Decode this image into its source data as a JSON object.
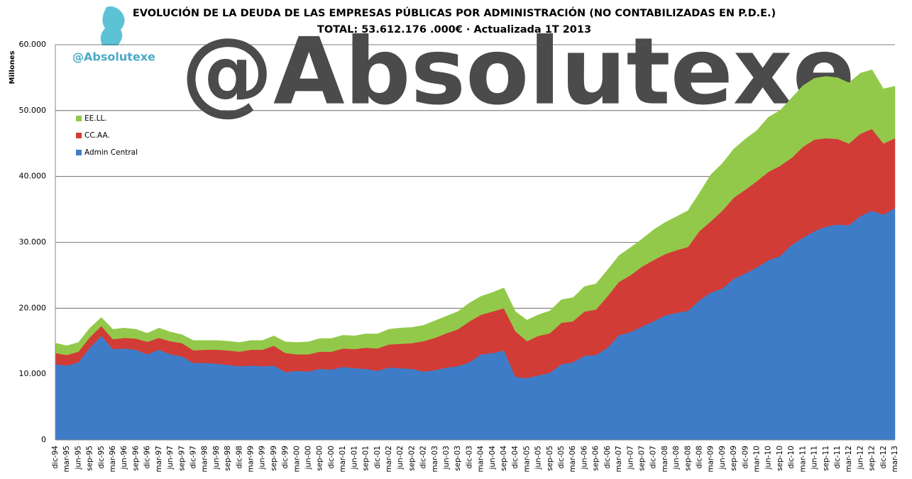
{
  "chart_data": {
    "type": "stacked-area",
    "title": "EVOLUCIÓN DE LA DEUDA DE LAS EMPRESAS PÚBLICAS POR ADMINISTRACIÓN (NO CONTABILIZADAS EN P.D.E.)",
    "subtitle": "TOTAL: 53.612.176 .000€ · Actualizada 1T 2013",
    "brand": "@Absolutexe",
    "y_label": "Millones",
    "categories": [
      "dic-94",
      "mar-95",
      "jun-95",
      "sep-95",
      "dic-95",
      "mar-96",
      "jun-96",
      "sep-96",
      "dic-96",
      "mar-97",
      "jun-97",
      "sep-97",
      "dic-97",
      "mar-98",
      "jun-98",
      "sep-98",
      "dic-98",
      "mar-99",
      "jun-99",
      "sep-99",
      "dic-99",
      "mar-00",
      "jun-00",
      "sep-00",
      "dic-00",
      "mar-01",
      "jun-01",
      "sep-01",
      "dic-01",
      "mar-02",
      "jun-02",
      "sep-02",
      "dic-02",
      "mar-03",
      "jun-03",
      "sep-03",
      "dic-03",
      "mar-04",
      "jun-04",
      "sep-04",
      "dic-04",
      "mar-05",
      "jun-05",
      "sep-05",
      "dic-05",
      "mar-06",
      "jun-06",
      "sep-06",
      "dic-06",
      "mar-07",
      "jun-07",
      "sep-07",
      "dic-07",
      "mar-08",
      "jun-08",
      "sep-08",
      "dic-08",
      "mar-09",
      "jun-09",
      "sep-09",
      "dic-09",
      "mar-10",
      "jun-10",
      "sep-10",
      "dic-10",
      "mar-11",
      "jun-11",
      "sep-11",
      "dic-11",
      "mar-12",
      "jun-12",
      "sep-12",
      "dic-12",
      "mar-13"
    ],
    "series": [
      {
        "name": "Admin Central",
        "color": "#3f7cc7",
        "values": [
          11500,
          11300,
          11800,
          14000,
          15800,
          13800,
          13900,
          13700,
          13000,
          13700,
          13000,
          12700,
          11700,
          11700,
          11600,
          11400,
          11200,
          11300,
          11200,
          11300,
          10300,
          10500,
          10400,
          10800,
          10700,
          11100,
          10900,
          10800,
          10500,
          11000,
          10900,
          10800,
          10400,
          10600,
          11000,
          11200,
          11800,
          13000,
          13200,
          13600,
          9600,
          9400,
          9800,
          10200,
          11500,
          11800,
          12800,
          12900,
          14000,
          15900,
          16400,
          17200,
          18000,
          18900,
          19300,
          19600,
          21200,
          22400,
          23000,
          24500,
          25300,
          26200,
          27300,
          27900,
          29600,
          30700,
          31700,
          32400,
          32700,
          32600,
          34000,
          34800,
          34200,
          35200
        ]
      },
      {
        "name": "CC.AA.",
        "color": "#d13c36",
        "values": [
          1700,
          1600,
          1600,
          1600,
          1500,
          1500,
          1600,
          1700,
          1900,
          1800,
          2000,
          2000,
          1900,
          2000,
          2100,
          2200,
          2200,
          2400,
          2500,
          3000,
          2900,
          2500,
          2600,
          2600,
          2700,
          2800,
          2900,
          3200,
          3400,
          3500,
          3700,
          3900,
          4600,
          4900,
          5200,
          5600,
          6200,
          6000,
          6300,
          6400,
          6900,
          5600,
          6000,
          6000,
          6300,
          6200,
          6700,
          6900,
          7800,
          8100,
          8600,
          9100,
          9300,
          9300,
          9500,
          9700,
          10500,
          10800,
          11800,
          12300,
          12700,
          13100,
          13400,
          13700,
          13200,
          13800,
          13900,
          13400,
          13000,
          12400,
          12500,
          12400,
          10800,
          10600
        ]
      },
      {
        "name": "EE.LL.",
        "color": "#93c94a",
        "values": [
          1500,
          1400,
          1400,
          1400,
          1300,
          1500,
          1500,
          1400,
          1300,
          1500,
          1400,
          1300,
          1500,
          1400,
          1400,
          1400,
          1400,
          1400,
          1400,
          1500,
          1700,
          1800,
          1900,
          2000,
          2000,
          2000,
          2000,
          2100,
          2200,
          2300,
          2400,
          2400,
          2400,
          2600,
          2600,
          2700,
          2800,
          2800,
          2900,
          3100,
          3000,
          3200,
          3200,
          3400,
          3500,
          3600,
          3800,
          3900,
          4000,
          4000,
          4200,
          4200,
          4600,
          4800,
          5100,
          5500,
          5800,
          7100,
          7200,
          7400,
          7700,
          7700,
          8300,
          8400,
          9100,
          9300,
          9300,
          9400,
          9300,
          9200,
          9200,
          9000,
          8300,
          7900
        ]
      }
    ],
    "ylim": [
      0,
      60000
    ],
    "yticks": [
      0,
      {
        "value": 10000,
        "label": "10.000"
      },
      {
        "value": 20000,
        "label": "20.000"
      },
      {
        "value": 30000,
        "label": "30.000"
      },
      {
        "value": 40000,
        "label": "40.000"
      },
      {
        "value": 50000,
        "label": "50.000"
      },
      {
        "value": 60000,
        "label": "60.000"
      }
    ],
    "grid": true,
    "legend": "upper-left"
  }
}
